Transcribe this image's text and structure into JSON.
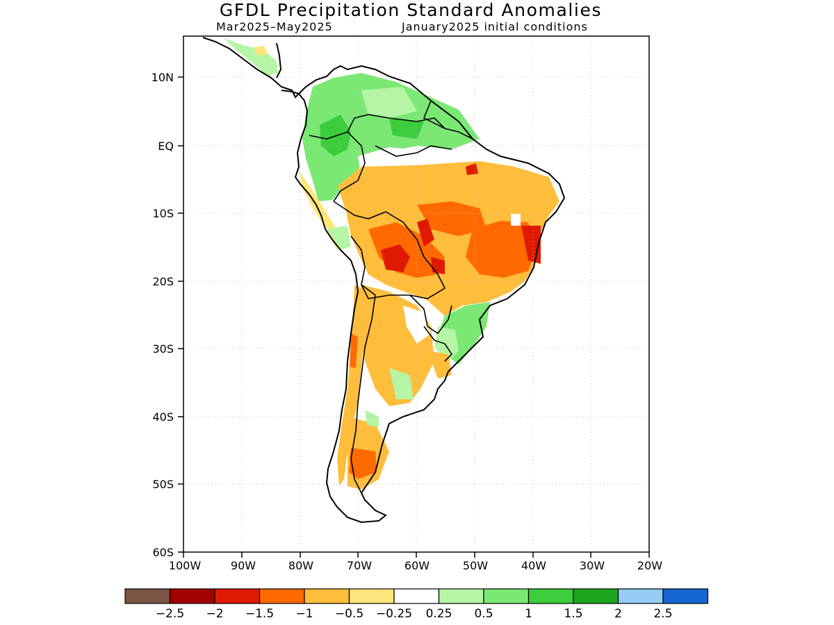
{
  "title": "GFDL Precipitation Standard Anomalies",
  "subtitle_left": "Mar2025–May2025",
  "subtitle_right": "January2025 initial conditions",
  "lon_labels": [
    "100W",
    "90W",
    "80W",
    "70W",
    "60W",
    "50W",
    "40W",
    "30W",
    "20W"
  ],
  "lat_labels": [
    "10N",
    "EQ",
    "10S",
    "20S",
    "30S",
    "40S",
    "50S",
    "60S"
  ],
  "map_extent": {
    "lon": [
      -100,
      -20
    ],
    "lat": [
      -60,
      6
    ]
  },
  "colorbar": {
    "colors": [
      "#7a5444",
      "#a30000",
      "#df1a00",
      "#ff6a00",
      "#ffbd3c",
      "#ffe57a",
      "#ffffff",
      "#b5f5a5",
      "#7be874",
      "#3ccd3c",
      "#1ea51e",
      "#95cdf5",
      "#1566d2"
    ],
    "labels": [
      "−2.5",
      "−2",
      "−1.5",
      "−1",
      "−0.5",
      "−0.25",
      "0.25",
      "0.5",
      "1",
      "1.5",
      "2",
      "2.5"
    ]
  }
}
